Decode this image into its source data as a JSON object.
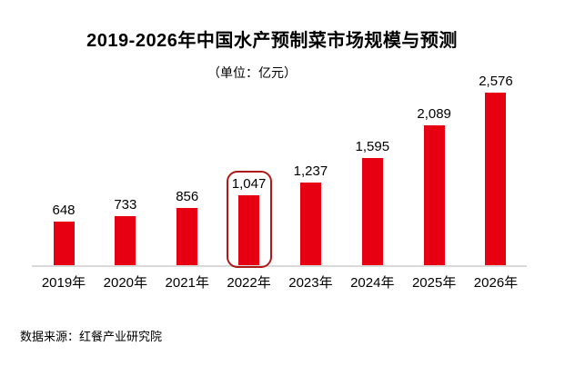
{
  "page": {
    "background": "#ffffff"
  },
  "chart_data": {
    "type": "bar",
    "title": "2019-2026年中国水产预制菜市场规模与预测",
    "unit_label": "（单位：亿元）",
    "categories": [
      "2019年",
      "2020年",
      "2021年",
      "2022年",
      "2023年",
      "2024年",
      "2025年",
      "2026年"
    ],
    "values": [
      648,
      733,
      856,
      1047,
      1237,
      1595,
      2089,
      2576
    ],
    "value_labels": [
      "648",
      "733",
      "856",
      "1,047",
      "1,237",
      "1,595",
      "2,089",
      "2,576"
    ],
    "ylim": [
      0,
      2576
    ],
    "grid": false,
    "legend": false,
    "xlabel": "",
    "ylabel": "",
    "highlight": {
      "index": 3,
      "style": "rounded-outline"
    },
    "colors": {
      "bar": "#E60012",
      "highlight_border": "#B01818",
      "axis_line": "#D9D9D9",
      "text": "#000000"
    },
    "source": "数据来源：红餐产业研究院"
  }
}
